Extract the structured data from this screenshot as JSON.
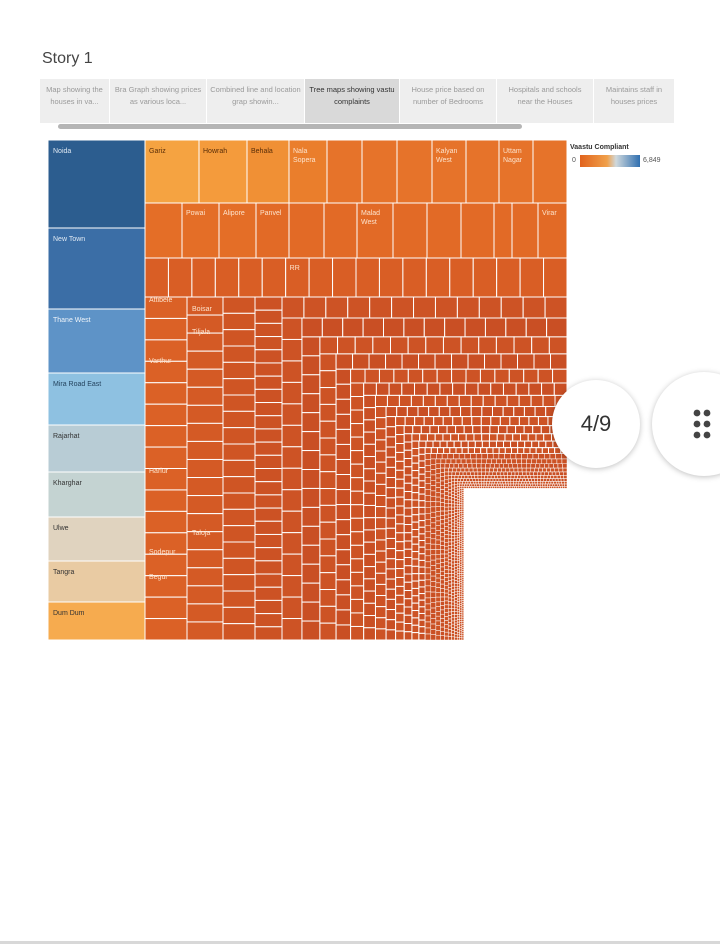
{
  "story": {
    "title": "Story 1",
    "tabs": [
      "Map showing the houses in va...",
      "Bra Graph showing prices as various loca...",
      "Combined line and location grap showin...",
      "Tree maps showing vastu complaints",
      "House price based on number of Bedrooms",
      "Hospitals and schools near the Houses",
      "Maintains staff in houses prices"
    ],
    "page_indicator": "4/9"
  },
  "treemap": {
    "left_column": [
      "Noida",
      "New Town",
      "Thane West",
      "Mira Road East",
      "Rajarhat",
      "Kharghar",
      "Ulwe",
      "Tangra",
      "Dum Dum"
    ],
    "labels": [
      "Gariz",
      "Howrah",
      "Behala",
      "Nala Sopera",
      "Kalyan West",
      "Uttam Nagar",
      "Powai",
      "Alipore",
      "Panvel",
      "Malad West",
      "Virar",
      "RR",
      "Attibele",
      "Boisar",
      "Tiljala",
      "Varthur",
      "Harlur",
      "Taloja",
      "Sodepur",
      "Begur"
    ]
  },
  "legend": {
    "title": "Vaastu Compliant",
    "min": "0",
    "max": "6,849"
  }
}
